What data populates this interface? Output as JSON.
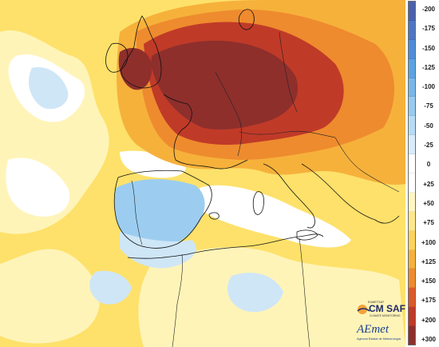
{
  "legend": {
    "labels": [
      "-200",
      "-175",
      "-150",
      "-125",
      "-100",
      "-75",
      "-50",
      "-25",
      "0",
      "+25",
      "+50",
      "+75",
      "+100",
      "+125",
      "+150",
      "+175",
      "+200",
      "+300"
    ],
    "swatches": [
      "#4a62ad",
      "#4f76c2",
      "#4f8dd8",
      "#5ba3e2",
      "#77b8ea",
      "#97cbf0",
      "#b8dcf5",
      "#d9ecfa",
      "#ffffff",
      "#ffffff",
      "#fff6c4",
      "#ffe88a",
      "#fdd35a",
      "#f6b13b",
      "#ee8b2e",
      "#dc5a2a",
      "#c03a28",
      "#8e2f2c"
    ]
  },
  "map": {
    "colors": {
      "background": "#fde16a",
      "pale": "#fff4b8",
      "white": "#ffffff",
      "lightblue": "#cfe6f7",
      "blue": "#9ccdf0",
      "orange": "#f6b13b",
      "darkorange": "#ee8b2e",
      "red": "#c03a28",
      "darkred": "#8e2f2c",
      "border": "#111111"
    }
  },
  "logos": {
    "eumetsat": "EUMETSAT",
    "cmsaf": "CM SAF",
    "cmsaf_sub": "CLIMATE MONITORING",
    "aemet": "AEmet",
    "aemet_sub": "Agencia Estatal de Meteorología"
  }
}
